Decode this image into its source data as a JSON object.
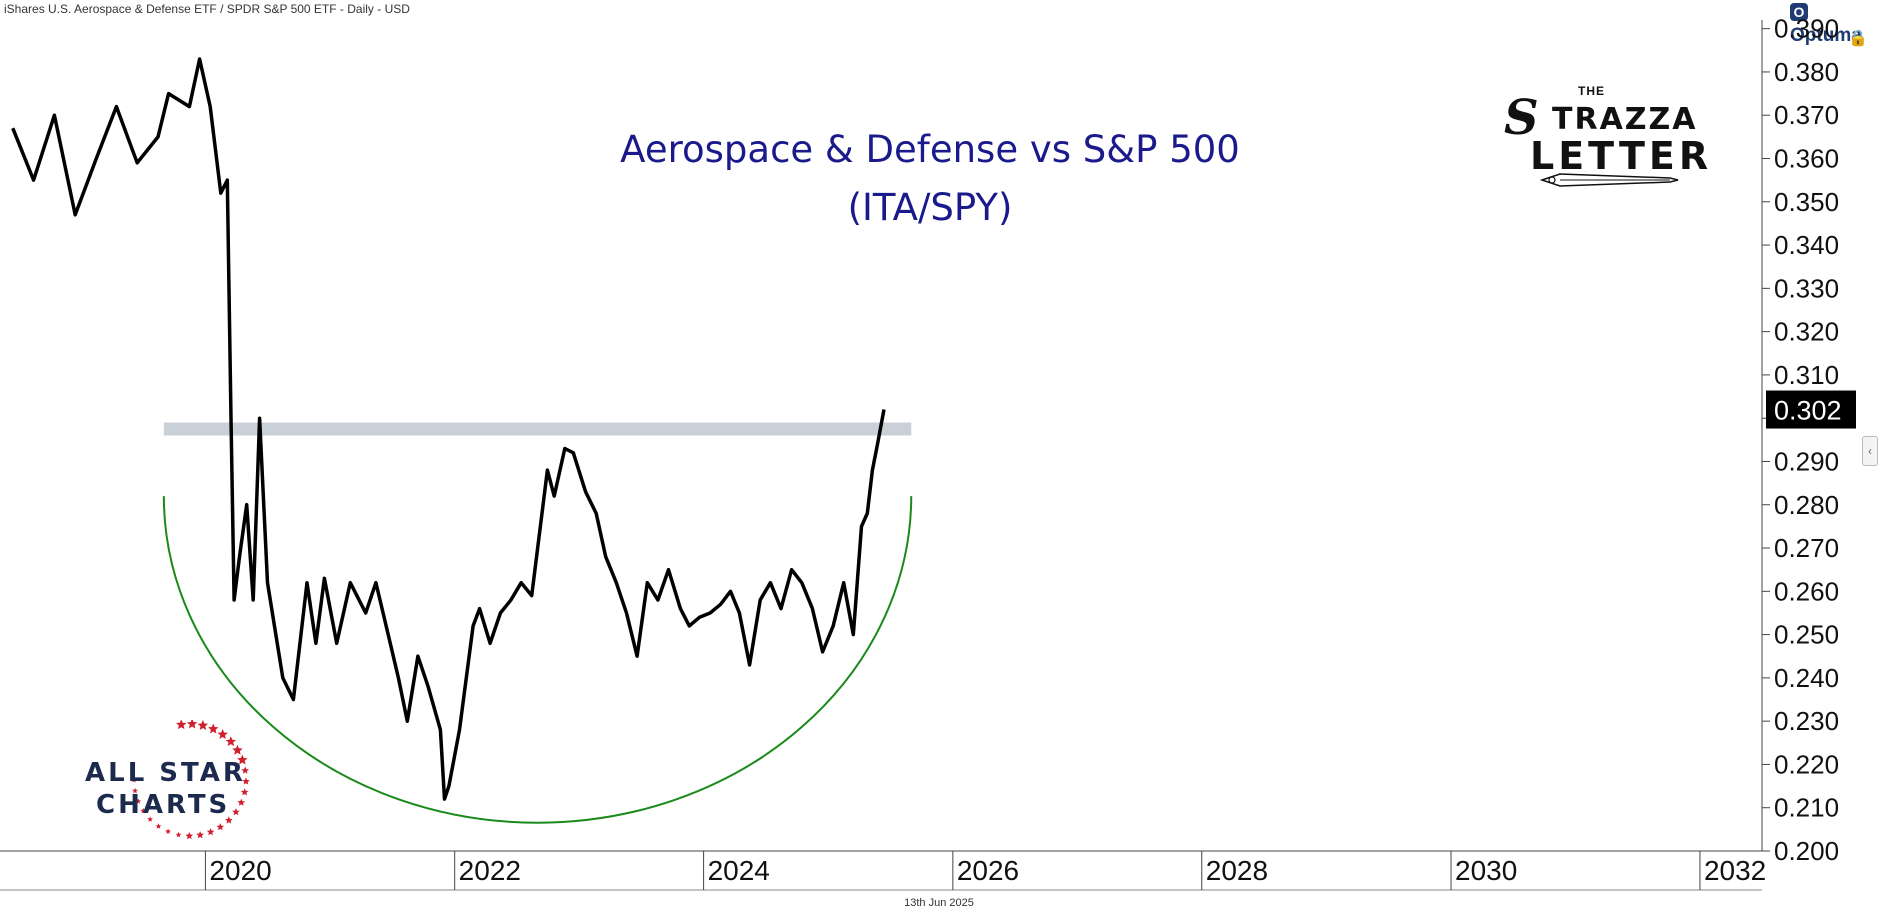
{
  "header": {
    "text": "iShares U.S. Aerospace & Defense ETF / SPDR S&P 500 ETF - Daily - USD"
  },
  "brand": {
    "badge": "O",
    "name": "Optuma"
  },
  "footer": {
    "date": "13th Jun 2025"
  },
  "logos": {
    "strazza": {
      "the": "THE",
      "s": "S",
      "trazza": "TRAZZA",
      "letter": "LETTER"
    },
    "allstar": {
      "line1": "ALL STAR",
      "line2": "CHARTS"
    }
  },
  "colors": {
    "series": "#000000",
    "title": "#1a1a8c",
    "resistance_band": "#c9d0d8",
    "rounding_arc": "#1a8a1a",
    "last_value_bg": "#000000",
    "stars": "#d0202e"
  },
  "icons": {
    "lock": "lock-icon",
    "collapse": "chevron-left-icon"
  },
  "chart_data": {
    "type": "line",
    "title": "Aerospace & Defense vs S&P 500",
    "subtitle": "(ITA/SPY)",
    "series": [
      {
        "x": [
          "2018-06-15",
          "2018-08-15",
          "2018-10-15",
          "2018-12-15",
          "2019-02-15",
          "2019-04-15",
          "2019-06-15",
          "2019-08-15",
          "2019-09-15",
          "2019-11-15",
          "2019-12-15",
          "2020-01-15",
          "2020-02-15",
          "2020-03-05",
          "2020-03-16",
          "2020-03-25",
          "2020-04-10",
          "2020-05-01",
          "2020-05-20",
          "2020-06-08",
          "2020-07-01",
          "2020-08-15",
          "2020-09-15",
          "2020-10-25",
          "2020-11-20",
          "2020-12-15",
          "2021-01-20",
          "2021-03-01",
          "2021-04-15",
          "2021-05-15",
          "2021-06-20",
          "2021-07-20",
          "2021-08-15",
          "2021-09-15",
          "2021-10-15",
          "2021-11-20",
          "2021-12-02",
          "2021-12-15",
          "2022-01-15",
          "2022-02-24",
          "2022-03-15",
          "2022-04-15",
          "2022-05-15",
          "2022-06-15",
          "2022-07-15",
          "2022-08-15",
          "2022-09-30",
          "2022-10-20",
          "2022-11-20",
          "2022-12-15",
          "2023-01-20",
          "2023-02-20",
          "2023-03-20",
          "2023-04-20",
          "2023-05-20",
          "2023-06-20",
          "2023-07-20",
          "2023-08-20",
          "2023-09-20",
          "2023-10-25",
          "2023-11-20",
          "2023-12-20",
          "2024-01-20",
          "2024-02-20",
          "2024-03-20",
          "2024-04-15",
          "2024-05-15",
          "2024-06-15",
          "2024-07-15",
          "2024-08-15",
          "2024-09-15",
          "2024-10-15",
          "2024-11-15",
          "2024-12-15",
          "2025-01-15",
          "2025-02-15",
          "2025-03-15",
          "2025-04-08",
          "2025-04-25",
          "2025-05-10",
          "2025-05-25",
          "2025-06-13"
        ],
        "y": [
          0.367,
          0.355,
          0.37,
          0.347,
          0.36,
          0.372,
          0.359,
          0.365,
          0.375,
          0.372,
          0.383,
          0.372,
          0.352,
          0.355,
          0.3,
          0.258,
          0.268,
          0.28,
          0.258,
          0.3,
          0.262,
          0.24,
          0.235,
          0.262,
          0.248,
          0.263,
          0.248,
          0.262,
          0.255,
          0.262,
          0.25,
          0.24,
          0.23,
          0.245,
          0.238,
          0.228,
          0.212,
          0.215,
          0.228,
          0.252,
          0.256,
          0.248,
          0.255,
          0.258,
          0.262,
          0.259,
          0.288,
          0.282,
          0.293,
          0.292,
          0.283,
          0.278,
          0.268,
          0.262,
          0.255,
          0.245,
          0.262,
          0.258,
          0.265,
          0.256,
          0.252,
          0.254,
          0.255,
          0.257,
          0.26,
          0.255,
          0.243,
          0.258,
          0.262,
          0.256,
          0.265,
          0.262,
          0.256,
          0.246,
          0.252,
          0.262,
          0.25,
          0.275,
          0.278,
          0.288,
          0.294,
          0.302
        ]
      }
    ],
    "yaxis": {
      "ticks": [
        "0.390",
        "0.380",
        "0.370",
        "0.360",
        "0.350",
        "0.340",
        "0.330",
        "0.320",
        "0.310",
        "0.300",
        "0.290",
        "0.280",
        "0.270",
        "0.260",
        "0.250",
        "0.240",
        "0.230",
        "0.220",
        "0.210",
        "0.200"
      ],
      "range": [
        0.2,
        0.392
      ]
    },
    "xaxis": {
      "ticks": [
        "2020",
        "2022",
        "2024",
        "2026",
        "2028",
        "2030",
        "2032"
      ],
      "range": [
        "2018-06-01",
        "2032-07-01"
      ]
    },
    "last_value": "0.302",
    "annotations": {
      "resistance_band": {
        "y_low": 0.296,
        "y_high": 0.299,
        "x_start": "2019-09-01",
        "x_end": "2025-09-01"
      },
      "rounding_bottom_arc": {
        "x_start": "2019-09-01",
        "x_end": "2025-09-01",
        "y_ends": 0.282,
        "y_min": 0.2065
      }
    },
    "grid": false,
    "legend": "none"
  }
}
